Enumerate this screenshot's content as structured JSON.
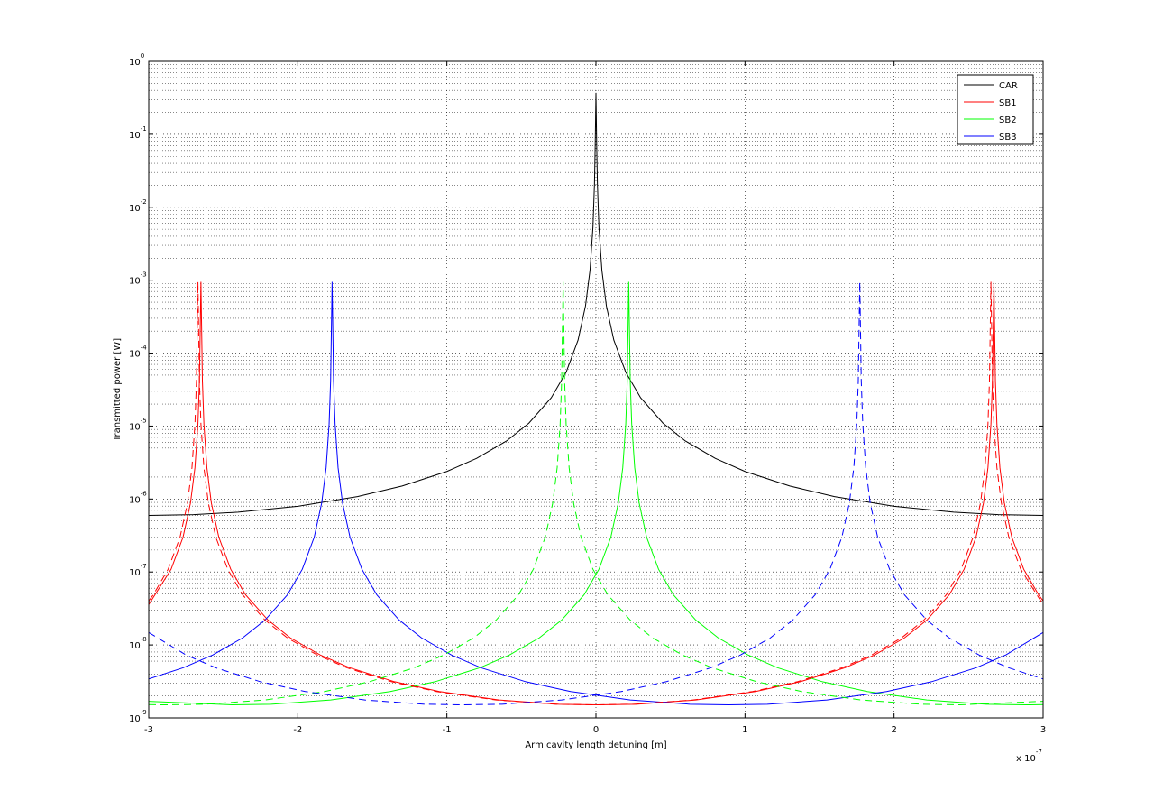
{
  "chart_data": {
    "type": "line",
    "xlabel": "Arm cavity length detuning [m]",
    "ylabel": "Transmitted power [W]",
    "x_multiplier": {
      "label": "x 10",
      "exponent": "-7"
    },
    "xlim": [
      -3,
      3
    ],
    "xticks": [
      -3,
      -2,
      -1,
      0,
      1,
      2,
      3
    ],
    "ylim": [
      1e-09,
      1
    ],
    "yscale": "log",
    "yticks": [
      {
        "value": 1e-09,
        "label": "10",
        "exponent": "-9"
      },
      {
        "value": 1e-08,
        "label": "10",
        "exponent": "-8"
      },
      {
        "value": 1e-07,
        "label": "10",
        "exponent": "-7"
      },
      {
        "value": 1e-06,
        "label": "10",
        "exponent": "-6"
      },
      {
        "value": 1e-05,
        "label": "10",
        "exponent": "-5"
      },
      {
        "value": 0.0001,
        "label": "10",
        "exponent": "-4"
      },
      {
        "value": 0.001,
        "label": "10",
        "exponent": "-3"
      },
      {
        "value": 0.01,
        "label": "10",
        "exponent": "-2"
      },
      {
        "value": 0.1,
        "label": "10",
        "exponent": "-1"
      },
      {
        "value": 1,
        "label": "10",
        "exponent": "0"
      }
    ],
    "grid": true,
    "minor_grid": true,
    "legend": "northeast",
    "series": [
      {
        "name": "CAR",
        "color": "#000000",
        "style": "solid",
        "x": [
          -3,
          -2.7,
          -2.4,
          -2,
          -1.6,
          -1.3,
          -1,
          -0.8,
          -0.6,
          -0.45,
          -0.3,
          -0.2,
          -0.12,
          -0.07,
          -0.04,
          -0.02,
          -0.01,
          -0.005,
          0,
          0.005,
          0.01,
          0.02,
          0.04,
          0.07,
          0.12,
          0.2,
          0.3,
          0.45,
          0.6,
          0.8,
          1,
          1.3,
          1.6,
          2,
          2.4,
          2.7,
          3
        ],
        "values": [
          5.97e-07,
          6.12e-07,
          6.6e-07,
          7.96e-07,
          1.08e-06,
          1.51e-06,
          2.39e-06,
          3.61e-06,
          6.25e-06,
          1.095e-05,
          2.44e-05,
          5.46e-05,
          0.000151,
          0.000444,
          0.00136,
          0.00536,
          0.0206,
          0.0705,
          0.37,
          0.0705,
          0.0206,
          0.00536,
          0.00136,
          0.000444,
          0.000151,
          5.46e-05,
          2.44e-05,
          1.095e-05,
          6.25e-06,
          3.61e-06,
          2.39e-06,
          1.51e-06,
          1.08e-06,
          7.96e-07,
          6.6e-07,
          6.12e-07,
          5.97e-07
        ]
      },
      {
        "name": "SB1",
        "color": "#ff0000",
        "style": "solid",
        "x": [
          -3,
          -2.85,
          -2.77,
          -2.72,
          -2.69,
          -2.67,
          -2.66,
          -2.65,
          -2.64,
          -2.63,
          -2.61,
          -2.58,
          -2.53,
          -2.45,
          -2.35,
          -2.2,
          -2.05,
          -1.85,
          -1.65,
          -1.35,
          -1.05,
          -0.65,
          -0.25,
          0.01,
          0.27,
          0.67,
          1.07,
          1.37,
          1.67,
          1.87,
          2.07,
          2.22,
          2.37,
          2.47,
          2.55,
          2.6,
          2.63,
          2.65,
          2.66,
          2.67,
          2.68,
          2.69,
          2.71,
          2.74,
          2.79,
          2.87,
          2.97,
          3
        ],
        "values": [
          3.58e-08,
          1.09e-07,
          3e-07,
          8.8e-07,
          2.7e-06,
          1.07e-05,
          4.14e-05,
          0.00095,
          4.14e-05,
          1.07e-05,
          2.7e-06,
          8.8e-07,
          3e-07,
          1.09e-07,
          4.86e-08,
          2.19e-08,
          1.25e-08,
          7.29e-09,
          4.86e-09,
          3.13e-09,
          2.3e-09,
          1.76e-09,
          1.54e-09,
          1.51e-09,
          1.54e-09,
          1.76e-09,
          2.3e-09,
          3.13e-09,
          4.86e-09,
          7.29e-09,
          1.25e-08,
          2.19e-08,
          4.86e-08,
          1.09e-07,
          3e-07,
          8.8e-07,
          2.7e-06,
          1.07e-05,
          4.14e-05,
          0.00095,
          4.14e-05,
          1.07e-05,
          2.7e-06,
          8.8e-07,
          3e-07,
          1.09e-07,
          4.86e-08,
          4.02e-08
        ]
      },
      {
        "name": "SB2",
        "color": "#00ff00",
        "style": "solid",
        "x": [
          -3,
          -2.44,
          -2.18,
          -1.78,
          -1.38,
          -1.08,
          -0.78,
          -0.58,
          -0.38,
          -0.23,
          -0.08,
          0.02,
          0.1,
          0.15,
          0.18,
          0.2,
          0.21,
          0.22,
          0.23,
          0.24,
          0.26,
          0.29,
          0.34,
          0.42,
          0.52,
          0.67,
          0.82,
          1.02,
          1.22,
          1.52,
          1.82,
          2.22,
          2.62,
          2.88,
          3
        ],
        "values": [
          1.69e-09,
          1.51e-09,
          1.54e-09,
          1.76e-09,
          2.3e-09,
          3.13e-09,
          4.86e-09,
          7.29e-09,
          1.25e-08,
          2.19e-08,
          4.86e-08,
          1.09e-07,
          3e-07,
          8.8e-07,
          2.7e-06,
          1.07e-05,
          4.14e-05,
          0.00095,
          4.14e-05,
          1.07e-05,
          2.7e-06,
          8.8e-07,
          3e-07,
          1.09e-07,
          4.86e-08,
          2.19e-08,
          1.25e-08,
          7.29e-09,
          4.86e-09,
          3.13e-09,
          2.3e-09,
          1.76e-09,
          1.54e-09,
          1.51e-09,
          1.52e-09
        ]
      },
      {
        "name": "SB3",
        "color": "#0000ff",
        "style": "solid",
        "x": [
          -3,
          -2.77,
          -2.57,
          -2.37,
          -2.22,
          -2.07,
          -1.97,
          -1.89,
          -1.84,
          -1.81,
          -1.79,
          -1.78,
          -1.77,
          -1.76,
          -1.75,
          -1.73,
          -1.7,
          -1.65,
          -1.57,
          -1.47,
          -1.32,
          -1.17,
          -0.97,
          -0.77,
          -0.47,
          -0.17,
          0.23,
          0.63,
          0.89,
          1.15,
          1.55,
          1.95,
          2.25,
          2.55,
          2.75,
          3
        ],
        "values": [
          3.42e-09,
          4.86e-09,
          7.29e-09,
          1.25e-08,
          2.19e-08,
          4.86e-08,
          1.09e-07,
          3e-07,
          8.8e-07,
          2.7e-06,
          1.07e-05,
          4.14e-05,
          0.00095,
          4.14e-05,
          1.07e-05,
          2.7e-06,
          8.8e-07,
          3e-07,
          1.09e-07,
          4.86e-08,
          2.19e-08,
          1.25e-08,
          7.29e-09,
          4.86e-09,
          3.13e-09,
          2.3e-09,
          1.76e-09,
          1.54e-09,
          1.51e-09,
          1.54e-09,
          1.76e-09,
          2.3e-09,
          3.13e-09,
          4.86e-09,
          7.29e-09,
          1.48e-08
        ]
      },
      {
        "color": "#ff0000",
        "style": "dashed",
        "x": [
          -3,
          -2.97,
          -2.87,
          -2.79,
          -2.74,
          -2.71,
          -2.69,
          -2.68,
          -2.67,
          -2.66,
          -2.65,
          -2.63,
          -2.6,
          -2.55,
          -2.47,
          -2.37,
          -2.22,
          -2.07,
          -1.87,
          -1.67,
          -1.37,
          -1.07,
          -0.67,
          -0.27,
          -0.01,
          0.25,
          0.65,
          1.05,
          1.35,
          1.65,
          1.85,
          2.05,
          2.2,
          2.35,
          2.45,
          2.53,
          2.58,
          2.61,
          2.63,
          2.64,
          2.65,
          2.66,
          2.67,
          2.69,
          2.72,
          2.77,
          2.85,
          3
        ],
        "values": [
          4.02e-08,
          4.86e-08,
          1.09e-07,
          3e-07,
          8.8e-07,
          2.7e-06,
          1.07e-05,
          4.14e-05,
          0.00095,
          4.14e-05,
          1.07e-05,
          2.7e-06,
          8.8e-07,
          3e-07,
          1.09e-07,
          4.86e-08,
          2.19e-08,
          1.25e-08,
          7.29e-09,
          4.86e-09,
          3.13e-09,
          2.3e-09,
          1.76e-09,
          1.54e-09,
          1.51e-09,
          1.54e-09,
          1.76e-09,
          2.3e-09,
          3.13e-09,
          4.86e-09,
          7.29e-09,
          1.25e-08,
          2.19e-08,
          4.86e-08,
          1.09e-07,
          3e-07,
          8.8e-07,
          2.7e-06,
          1.07e-05,
          4.14e-05,
          0.00095,
          4.14e-05,
          1.07e-05,
          2.7e-06,
          8.8e-07,
          3e-07,
          1.09e-07,
          3.58e-08
        ]
      },
      {
        "color": "#00ff00",
        "style": "dashed",
        "x": [
          -3,
          -2.88,
          -2.62,
          -2.22,
          -1.82,
          -1.52,
          -1.22,
          -1.02,
          -0.82,
          -0.67,
          -0.52,
          -0.42,
          -0.34,
          -0.29,
          -0.26,
          -0.24,
          -0.23,
          -0.22,
          -0.21,
          -0.2,
          -0.18,
          -0.15,
          -0.1,
          -0.02,
          0.08,
          0.23,
          0.38,
          0.58,
          0.78,
          1.08,
          1.38,
          1.78,
          2.18,
          2.44,
          3
        ],
        "values": [
          1.52e-09,
          1.51e-09,
          1.54e-09,
          1.76e-09,
          2.3e-09,
          3.13e-09,
          4.86e-09,
          7.29e-09,
          1.25e-08,
          2.19e-08,
          4.86e-08,
          1.09e-07,
          3e-07,
          8.8e-07,
          2.7e-06,
          1.07e-05,
          4.14e-05,
          0.00095,
          4.14e-05,
          1.07e-05,
          2.7e-06,
          8.8e-07,
          3e-07,
          1.09e-07,
          4.86e-08,
          2.19e-08,
          1.25e-08,
          7.29e-09,
          4.86e-09,
          3.13e-09,
          2.3e-09,
          1.76e-09,
          1.54e-09,
          1.51e-09,
          1.69e-09
        ]
      },
      {
        "color": "#0000ff",
        "style": "dashed",
        "x": [
          -3,
          -2.75,
          -2.55,
          -2.25,
          -1.95,
          -1.55,
          -1.15,
          -0.89,
          -0.63,
          -0.23,
          0.17,
          0.47,
          0.77,
          0.97,
          1.17,
          1.32,
          1.47,
          1.57,
          1.65,
          1.7,
          1.73,
          1.75,
          1.76,
          1.77,
          1.78,
          1.79,
          1.81,
          1.84,
          1.89,
          1.97,
          2.07,
          2.22,
          2.37,
          2.57,
          2.77,
          3
        ],
        "values": [
          1.48e-08,
          7.29e-09,
          4.86e-09,
          3.13e-09,
          2.3e-09,
          1.76e-09,
          1.54e-09,
          1.51e-09,
          1.54e-09,
          1.76e-09,
          2.3e-09,
          3.13e-09,
          4.86e-09,
          7.29e-09,
          1.25e-08,
          2.19e-08,
          4.86e-08,
          1.09e-07,
          3e-07,
          8.8e-07,
          2.7e-06,
          1.07e-05,
          4.14e-05,
          0.00095,
          4.14e-05,
          1.07e-05,
          2.7e-06,
          8.8e-07,
          3e-07,
          1.09e-07,
          4.86e-08,
          2.19e-08,
          1.25e-08,
          7.29e-09,
          4.86e-09,
          3.42e-09
        ]
      }
    ]
  }
}
